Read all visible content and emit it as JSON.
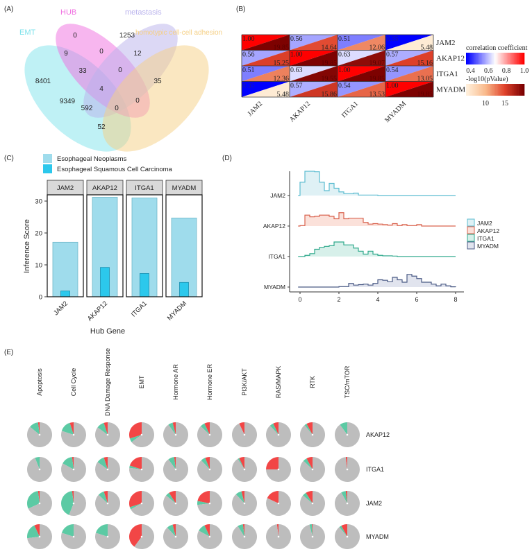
{
  "panels": {
    "a": "(A)",
    "b": "(B)",
    "c": "(C)",
    "d": "(D)",
    "e": "(E)"
  },
  "chart_data": [
    {
      "type": "venn",
      "sets": [
        {
          "name": "EMT",
          "color": "#7fe3ec"
        },
        {
          "name": "HUB",
          "color": "#f06ee0"
        },
        {
          "name": "metastasis",
          "color": "#b9b2ec"
        },
        {
          "name": "homotypic cell-cell adhesion",
          "color": "#f5cf84"
        }
      ],
      "regions": [
        {
          "sets": [
            "HUB"
          ],
          "value": 0
        },
        {
          "sets": [
            "metastasis"
          ],
          "value": 1253
        },
        {
          "sets": [
            "EMT",
            "HUB"
          ],
          "value": 9
        },
        {
          "sets": [
            "HUB",
            "metastasis"
          ],
          "value": 0
        },
        {
          "sets": [
            "metastasis",
            "homotypic cell-cell adhesion"
          ],
          "value": 12
        },
        {
          "sets": [
            "EMT",
            "HUB",
            "metastasis"
          ],
          "value": 33
        },
        {
          "sets": [
            "HUB",
            "metastasis",
            "homotypic cell-cell adhesion"
          ],
          "value": 0
        },
        {
          "sets": [
            "EMT"
          ],
          "value": 8401
        },
        {
          "sets": [
            "homotypic cell-cell adhesion"
          ],
          "value": 35
        },
        {
          "sets": [
            "EMT",
            "HUB",
            "metastasis",
            "homotypic cell-cell adhesion"
          ],
          "value": 4
        },
        {
          "sets": [
            "EMT",
            "metastasis"
          ],
          "value": 9349
        },
        {
          "sets": [
            "EMT",
            "metastasis",
            "homotypic cell-cell adhesion"
          ],
          "value": 592
        },
        {
          "sets": [
            "EMT",
            "HUB",
            "homotypic cell-cell adhesion"
          ],
          "value": 0
        },
        {
          "sets": [
            "HUB",
            "homotypic cell-cell adhesion"
          ],
          "value": 0
        },
        {
          "sets": [
            "EMT",
            "homotypic cell-cell adhesion"
          ],
          "value": 52
        }
      ]
    },
    {
      "type": "heatmap",
      "genes": [
        "JAM2",
        "AKAP12",
        "ITGA1",
        "MYADM"
      ],
      "correlation": [
        [
          "1.00",
          "0.56",
          "0.51",
          "0.35"
        ],
        [
          "0.56",
          "1.00",
          "0.63",
          "0.57"
        ],
        [
          "0.51",
          "0.63",
          "1.00",
          "0.54"
        ],
        [
          "0.35",
          "0.57",
          "0.54",
          "1.00"
        ]
      ],
      "neg_log10_p": [
        [
          "19.85",
          "14.64",
          "12.06",
          "5.48"
        ],
        [
          "15.25",
          "19.85",
          "19.07",
          "15.16"
        ],
        [
          "12.36",
          "19.55",
          "19.85",
          "13.05"
        ],
        [
          "5.48",
          "15.86",
          "13.53",
          "19.85"
        ]
      ],
      "legend_correlation": {
        "title": "correlation coefficient",
        "ticks": [
          "0.4",
          "0.6",
          "0.8",
          "1.0"
        ],
        "range": [
          0.35,
          1.0
        ],
        "colors": [
          "#0000ff",
          "#ffffff",
          "#ff0000"
        ]
      },
      "legend_p": {
        "title": "-log10(pValue)",
        "ticks": [
          "10",
          "15"
        ],
        "range": [
          5,
          20
        ],
        "colors": [
          "#fff0dc",
          "#f9b98a",
          "#e0422b",
          "#7a0000"
        ]
      }
    },
    {
      "type": "bar",
      "facets": [
        "JAM2",
        "AKAP12",
        "ITGA1",
        "MYADM"
      ],
      "categories": [
        "JAM2",
        "AKAP12",
        "ITGA1",
        "MYADM"
      ],
      "series": [
        {
          "name": "Esophageal Neoplasms",
          "color": "#9fdcec",
          "values": [
            17.1,
            31.2,
            31.0,
            24.7
          ]
        },
        {
          "name": "Esophageal Squamous Cell Carcinoma",
          "color": "#2cc8ec",
          "values": [
            1.8,
            9.2,
            7.3,
            4.5
          ]
        }
      ],
      "xlabel": "Hub Gene",
      "ylabel": "Inference Score",
      "yticks": [
        "0",
        "10",
        "20",
        "30"
      ],
      "ylim": [
        0,
        32
      ]
    },
    {
      "type": "ridgeline-histogram",
      "xlim": [
        0,
        8
      ],
      "xticks": [
        "0",
        "2",
        "4",
        "6",
        "8"
      ],
      "bin_width": 0.25,
      "series": [
        {
          "name": "JAM2",
          "color": "#5bbcd0",
          "fill": "#dff1f5",
          "values": [
            0.55,
            1.0,
            1.0,
            0.98,
            0.55,
            0.2,
            0.5,
            0.3,
            0.15,
            0.08,
            0.08,
            0.1,
            0.02,
            0.02,
            0.02,
            0.02,
            0,
            0,
            0,
            0,
            0,
            0,
            0,
            0,
            0,
            0,
            0,
            0,
            0,
            0,
            0,
            0
          ]
        },
        {
          "name": "AKAP12",
          "color": "#d9634f",
          "fill": "#fbe1da",
          "values": [
            0.02,
            0.45,
            0.38,
            0.4,
            0.45,
            0.45,
            0.4,
            0.3,
            0.55,
            0.3,
            0.32,
            0.32,
            0.32,
            0.15,
            0.08,
            0.1,
            0.08,
            0.06,
            0.04,
            0.1,
            0.02,
            0.06,
            0.02,
            0.02,
            0.06,
            0,
            0,
            0,
            0,
            0,
            0,
            0
          ]
        },
        {
          "name": "ITGA1",
          "color": "#2fa98c",
          "fill": "#d7f0ea",
          "values": [
            0,
            0.05,
            0.12,
            0.3,
            0.38,
            0.42,
            0.45,
            0.6,
            0.6,
            0.48,
            0.48,
            0.35,
            0.22,
            0.1,
            0.22,
            0.1,
            0.05,
            0.03,
            0.03,
            0.02,
            0,
            0,
            0,
            0,
            0,
            0,
            0,
            0,
            0,
            0,
            0,
            0
          ]
        },
        {
          "name": "MYADM",
          "color": "#4a5a85",
          "fill": "#e1e4ee",
          "values": [
            0,
            0,
            0,
            0,
            0,
            0,
            0,
            0,
            0.02,
            0.02,
            0.15,
            0.08,
            0.1,
            0.12,
            0.08,
            0.15,
            0.3,
            0.28,
            0.22,
            0.4,
            0.3,
            0.2,
            0.52,
            0.45,
            0.35,
            0.2,
            0.2,
            0.12,
            0.05,
            0.12,
            0.05,
            0.01
          ]
        }
      ]
    },
    {
      "type": "pie-grid",
      "columns": [
        "Apoptosis",
        "Cell Cycle",
        "DNA Damage Response",
        "EMT",
        "Hormone AR",
        "Hormone ER",
        "PI3K/AKT",
        "RAS/MAPK",
        "RTK",
        "TSC/mTOR"
      ],
      "rows": [
        "AKAP12",
        "ITGA1",
        "JAM2",
        "MYADM"
      ],
      "slice_colors": {
        "red": "#f24646",
        "green": "#5ccaa4",
        "gray": "#bdbdbd"
      },
      "values": [
        [
          [
            0.02,
            0.12
          ],
          [
            0.05,
            0.15
          ],
          [
            0.05,
            0.1
          ],
          [
            0.3,
            0.05
          ],
          [
            0.04,
            0.06
          ],
          [
            0.07,
            0.06
          ],
          [
            0.07,
            0.0
          ],
          [
            0.07,
            0.05
          ],
          [
            0.08,
            0.03
          ],
          [
            0.0,
            0.1
          ]
        ],
        [
          [
            0.0,
            0.06
          ],
          [
            0.02,
            0.15
          ],
          [
            0.05,
            0.1
          ],
          [
            0.2,
            0.03
          ],
          [
            0.02,
            0.08
          ],
          [
            0.06,
            0.06
          ],
          [
            0.07,
            0.02
          ],
          [
            0.25,
            0.0
          ],
          [
            0.08,
            0.05
          ],
          [
            0.02,
            0.0
          ]
        ],
        [
          [
            0.02,
            0.3
          ],
          [
            0.02,
            0.42
          ],
          [
            0.05,
            0.08
          ],
          [
            0.3,
            0.03
          ],
          [
            0.09,
            0.05
          ],
          [
            0.22,
            0.05
          ],
          [
            0.04,
            0.08
          ],
          [
            0.18,
            0.0
          ],
          [
            0.09,
            0.05
          ],
          [
            0.02,
            0.06
          ]
        ],
        [
          [
            0.07,
            0.2
          ],
          [
            0.0,
            0.2
          ],
          [
            0.0,
            0.2
          ],
          [
            0.4,
            0.0
          ],
          [
            0.04,
            0.08
          ],
          [
            0.07,
            0.1
          ],
          [
            0.02,
            0.07
          ],
          [
            0.02,
            0.0
          ],
          [
            0.01,
            0.03
          ],
          [
            0.08,
            0.03
          ]
        ]
      ],
      "value_format": "[red fraction, green fraction] per pie"
    }
  ]
}
